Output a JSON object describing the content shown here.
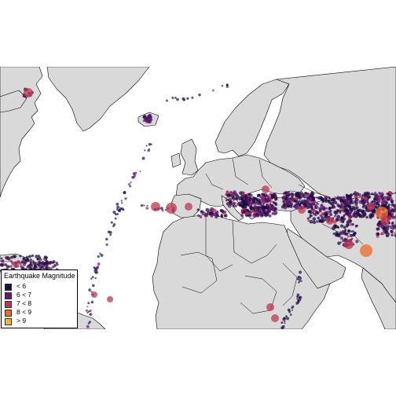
{
  "legend": {
    "title": "Earthquake Magnitude",
    "items": [
      {
        "label": "< 6",
        "color": "#1b0c41"
      },
      {
        "label": "6 < 7",
        "color": "#6a176e"
      },
      {
        "label": "7 < 8",
        "color": "#bc3754"
      },
      {
        "label": "8 < 9",
        "color": "#ed6925"
      },
      {
        "label": "> 9",
        "color": "#fbb61a"
      }
    ]
  },
  "colors": {
    "land": "#d9d9d9",
    "border": "#000000",
    "ocean": "#ffffff"
  }
}
